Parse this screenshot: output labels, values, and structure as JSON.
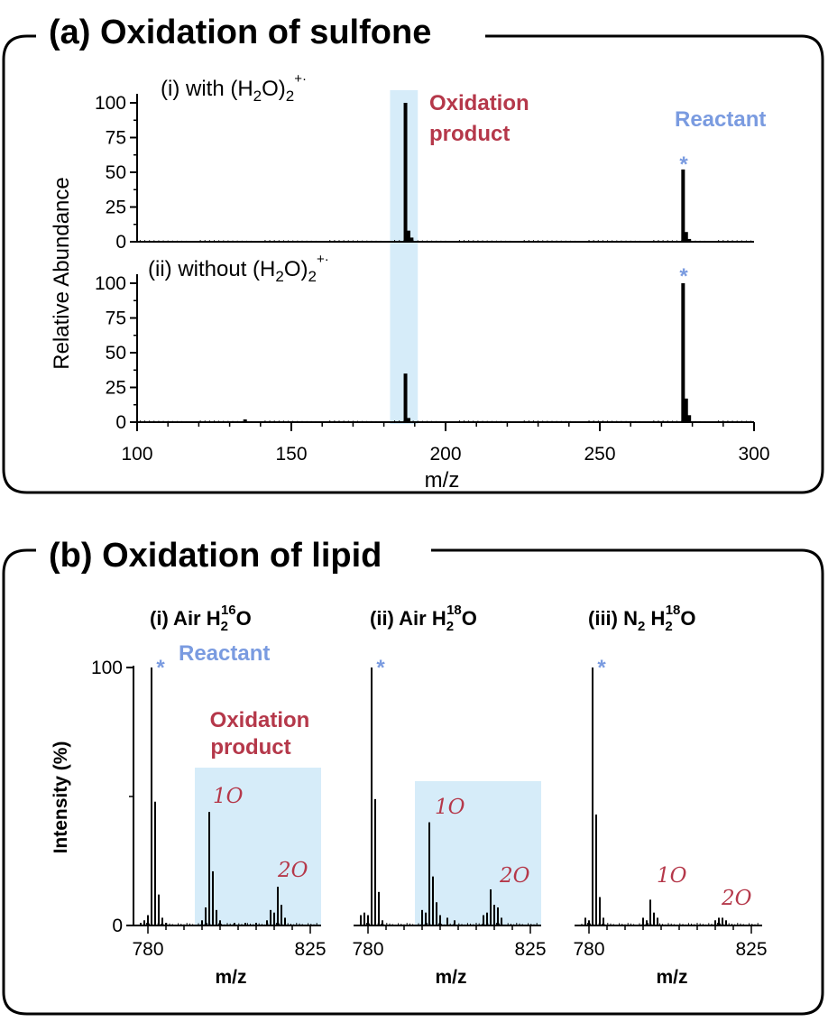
{
  "panel_a": {
    "title": "(a) Oxidation of sulfone",
    "ylabel": "Relative Abundance",
    "xlabel": "m/z",
    "sub_i": "(i)  with (H",
    "sub_i_sub": "2",
    "sub_i_end": "O)",
    "sub_i_sub2": "2",
    "sub_i_sup": "+·",
    "sub_ii": "(ii)  without (H",
    "sub_ii_sub": "2",
    "sub_ii_end": "O)",
    "sub_ii_sub2": "2",
    "sub_ii_sup": "+·",
    "product_label_1": "Oxidation",
    "product_label_2": "product",
    "reactant_label": "Reactant",
    "star": "*"
  },
  "panel_b": {
    "title": "(b) Oxidation of lipid",
    "ylabel": "Intensity (%)",
    "xlabel": "m/z",
    "sub_i": "(i) Air   H",
    "sub_i_sub": "2",
    "sub_i_sup": "16",
    "sub_i_end": "O",
    "sub_ii": "(ii) Air   H",
    "sub_ii_sub": "2",
    "sub_ii_sup": "18",
    "sub_ii_end": "O",
    "sub_iii": "(iii) N",
    "sub_iii_sub": "2",
    "sub_iii_mid": "   H",
    "sub_iii_sub2": "2",
    "sub_iii_sup": "18",
    "sub_iii_end": "O",
    "reactant_label": "Reactant",
    "product_label_1": "Oxidation",
    "product_label_2": "product",
    "ann_1o": "1O",
    "ann_2o": "2O",
    "star": "*"
  },
  "chart_data": [
    {
      "type": "bar",
      "panel": "a-i",
      "xlabel": "m/z",
      "ylabel": "Relative Abundance",
      "xlim": [
        100,
        300
      ],
      "ylim": [
        0,
        100
      ],
      "x_ticks": [
        100,
        150,
        200,
        250,
        300
      ],
      "y_ticks": [
        0,
        25,
        50,
        75,
        100
      ],
      "highlight_x": [
        182,
        191
      ],
      "peaks": [
        {
          "x": 187,
          "y": 100
        },
        {
          "x": 188,
          "y": 8
        },
        {
          "x": 189,
          "y": 3
        },
        {
          "x": 277,
          "y": 52
        },
        {
          "x": 278,
          "y": 7
        },
        {
          "x": 279,
          "y": 2
        }
      ]
    },
    {
      "type": "bar",
      "panel": "a-ii",
      "xlabel": "m/z",
      "ylabel": "Relative Abundance",
      "xlim": [
        100,
        300
      ],
      "ylim": [
        0,
        100
      ],
      "x_ticks": [
        100,
        150,
        200,
        250,
        300
      ],
      "y_ticks": [
        0,
        25,
        50,
        75,
        100
      ],
      "highlight_x": [
        182,
        191
      ],
      "peaks": [
        {
          "x": 187,
          "y": 35
        },
        {
          "x": 188,
          "y": 3
        },
        {
          "x": 277,
          "y": 100
        },
        {
          "x": 278,
          "y": 17
        },
        {
          "x": 279,
          "y": 5
        },
        {
          "x": 135,
          "y": 2
        }
      ]
    },
    {
      "type": "bar",
      "panel": "b-i",
      "xlabel": "m/z",
      "ylabel": "Intensity (%)",
      "xlim": [
        776,
        828
      ],
      "ylim": [
        0,
        100
      ],
      "x_ticks": [
        780,
        825
      ],
      "y_ticks": [
        0,
        100
      ],
      "highlight_x": [
        793,
        828
      ],
      "peaks": [
        {
          "x": 778,
          "y": 1
        },
        {
          "x": 779,
          "y": 2
        },
        {
          "x": 780,
          "y": 4
        },
        {
          "x": 781,
          "y": 100
        },
        {
          "x": 782,
          "y": 48
        },
        {
          "x": 783,
          "y": 12
        },
        {
          "x": 784,
          "y": 3
        },
        {
          "x": 785,
          "y": 1
        },
        {
          "x": 795,
          "y": 2
        },
        {
          "x": 796,
          "y": 7
        },
        {
          "x": 797,
          "y": 44
        },
        {
          "x": 798,
          "y": 21
        },
        {
          "x": 799,
          "y": 6
        },
        {
          "x": 800,
          "y": 2
        },
        {
          "x": 804,
          "y": 1
        },
        {
          "x": 807,
          "y": 1
        },
        {
          "x": 810,
          "y": 1
        },
        {
          "x": 813,
          "y": 2
        },
        {
          "x": 814,
          "y": 6
        },
        {
          "x": 815,
          "y": 5
        },
        {
          "x": 816,
          "y": 15
        },
        {
          "x": 817,
          "y": 8
        },
        {
          "x": 818,
          "y": 3
        }
      ]
    },
    {
      "type": "bar",
      "panel": "b-ii",
      "xlabel": "m/z",
      "ylabel": "Intensity (%)",
      "xlim": [
        776,
        828
      ],
      "ylim": [
        0,
        100
      ],
      "x_ticks": [
        780,
        825
      ],
      "highlight_x": [
        793,
        828
      ],
      "peaks": [
        {
          "x": 778,
          "y": 4
        },
        {
          "x": 779,
          "y": 5
        },
        {
          "x": 780,
          "y": 4
        },
        {
          "x": 781,
          "y": 100
        },
        {
          "x": 782,
          "y": 49
        },
        {
          "x": 783,
          "y": 13
        },
        {
          "x": 784,
          "y": 2
        },
        {
          "x": 795,
          "y": 6
        },
        {
          "x": 796,
          "y": 5
        },
        {
          "x": 797,
          "y": 40
        },
        {
          "x": 798,
          "y": 19
        },
        {
          "x": 799,
          "y": 9
        },
        {
          "x": 800,
          "y": 4
        },
        {
          "x": 802,
          "y": 3
        },
        {
          "x": 804,
          "y": 2
        },
        {
          "x": 812,
          "y": 4
        },
        {
          "x": 813,
          "y": 5
        },
        {
          "x": 814,
          "y": 14
        },
        {
          "x": 815,
          "y": 8
        },
        {
          "x": 816,
          "y": 7
        },
        {
          "x": 817,
          "y": 3
        }
      ]
    },
    {
      "type": "bar",
      "panel": "b-iii",
      "xlabel": "m/z",
      "ylabel": "Intensity (%)",
      "xlim": [
        776,
        828
      ],
      "ylim": [
        0,
        100
      ],
      "x_ticks": [
        780,
        825
      ],
      "peaks": [
        {
          "x": 779,
          "y": 3
        },
        {
          "x": 780,
          "y": 2
        },
        {
          "x": 781,
          "y": 100
        },
        {
          "x": 782,
          "y": 43
        },
        {
          "x": 783,
          "y": 11
        },
        {
          "x": 784,
          "y": 3
        },
        {
          "x": 795,
          "y": 3
        },
        {
          "x": 796,
          "y": 2
        },
        {
          "x": 797,
          "y": 10
        },
        {
          "x": 798,
          "y": 5
        },
        {
          "x": 799,
          "y": 3
        },
        {
          "x": 815,
          "y": 2
        },
        {
          "x": 816,
          "y": 3
        },
        {
          "x": 817,
          "y": 3
        },
        {
          "x": 818,
          "y": 2
        }
      ]
    }
  ]
}
